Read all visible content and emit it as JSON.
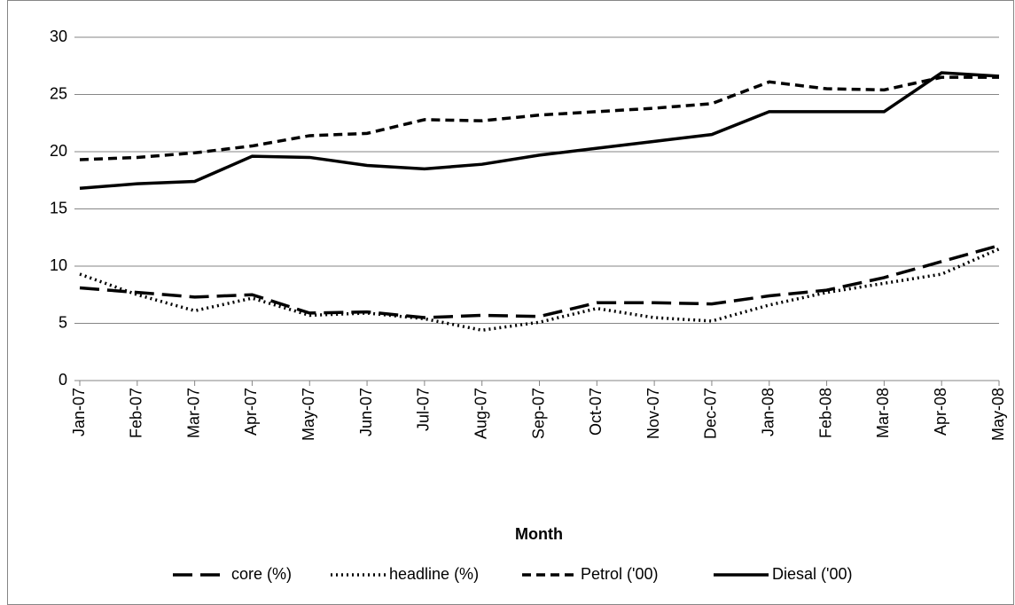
{
  "chart_data": {
    "type": "line",
    "x_label": "Month",
    "categories": [
      "Jan-07",
      "Feb-07",
      "Mar-07",
      "Apr-07",
      "May-07",
      "Jun-07",
      "Jul-07",
      "Aug-07",
      "Sep-07",
      "Oct-07",
      "Nov-07",
      "Dec-07",
      "Jan-08",
      "Feb-08",
      "Mar-08",
      "Apr-08",
      "May-08"
    ],
    "series": [
      {
        "name": "core (%)",
        "color": "#000000",
        "dash": "long-dash",
        "values": [
          8.1,
          7.7,
          7.3,
          7.5,
          5.9,
          6.0,
          5.5,
          5.7,
          5.6,
          6.8,
          6.8,
          6.7,
          7.4,
          7.9,
          9.0,
          10.4,
          11.8
        ]
      },
      {
        "name": "headline (%)",
        "color": "#000000",
        "dash": "dotted",
        "values": [
          9.3,
          7.5,
          6.1,
          7.2,
          5.7,
          5.9,
          5.4,
          4.4,
          5.1,
          6.3,
          5.5,
          5.2,
          6.6,
          7.7,
          8.5,
          9.3,
          11.5
        ]
      },
      {
        "name": "Petrol ('00)",
        "color": "#000000",
        "dash": "dashed",
        "values": [
          19.3,
          19.5,
          19.9,
          20.5,
          21.4,
          21.6,
          22.8,
          22.7,
          23.2,
          23.5,
          23.8,
          24.2,
          26.1,
          25.5,
          25.4,
          26.5,
          26.5
        ]
      },
      {
        "name": "Diesal ('00)",
        "color": "#000000",
        "dash": "solid",
        "values": [
          16.8,
          17.2,
          17.4,
          19.6,
          19.5,
          18.8,
          18.5,
          18.9,
          19.7,
          20.3,
          20.9,
          21.5,
          23.5,
          23.5,
          23.5,
          26.9,
          26.6
        ]
      }
    ],
    "ylim": [
      0,
      30
    ],
    "yticks": [
      0,
      5,
      10,
      15,
      20,
      25,
      30
    ],
    "grid": true,
    "legend": "bottom"
  }
}
